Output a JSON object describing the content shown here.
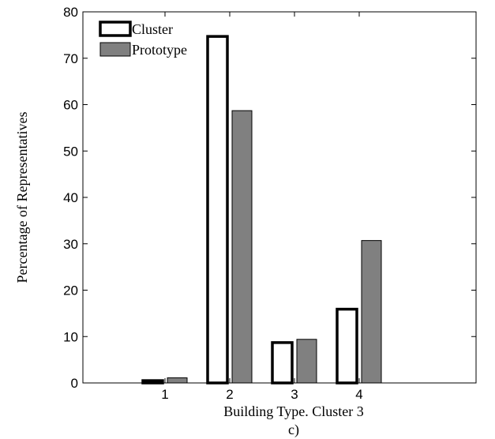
{
  "chart_data": {
    "type": "bar",
    "categories": [
      "1",
      "2",
      "3",
      "4"
    ],
    "series": [
      {
        "name": "Cluster",
        "values": [
          0.5,
          74.7,
          8.7,
          15.9
        ],
        "fill": "#ffffff",
        "stroke": "#000000"
      },
      {
        "name": "Prototype",
        "values": [
          1.1,
          58.7,
          9.4,
          30.7
        ],
        "fill": "#808080",
        "stroke": "#000000"
      }
    ],
    "title": "",
    "xlabel": "Building Type. Cluster 3",
    "ylabel": "Percentage of Representatives",
    "ylim": [
      0,
      80
    ],
    "yticks": [
      "0",
      "10",
      "20",
      "30",
      "40",
      "50",
      "60",
      "70",
      "80"
    ],
    "legend_position": "top-left",
    "grid": false,
    "caption": "c)"
  }
}
